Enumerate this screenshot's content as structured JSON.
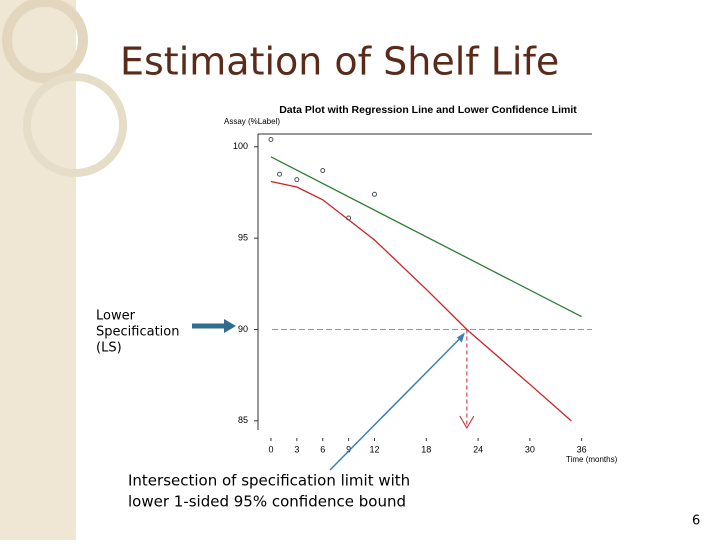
{
  "slide_title": "Estimation of Shelf Life",
  "left_note": [
    "Lower",
    "Specification",
    "(LS)"
  ],
  "bottom_note": [
    "Intersection of specification limit with",
    "lower 1-sided 95% confidence bound"
  ],
  "page_number": "6",
  "chart_data": {
    "type": "line",
    "title": "Data Plot with Regression Line and Lower Confidence Limit",
    "y_label": "Assay (%Label)",
    "x_label": "Time (months)",
    "xlim": [
      -1.5,
      37.2
    ],
    "ylim": [
      84.5,
      100.7
    ],
    "xticks": [
      0,
      3,
      6,
      9,
      12,
      18,
      24,
      30,
      36
    ],
    "yticks": [
      85,
      90,
      95,
      100
    ],
    "points": {
      "x": [
        0,
        1,
        3,
        6,
        9,
        12
      ],
      "values": [
        100.4,
        98.5,
        98.2,
        98.7,
        96.1,
        97.4
      ],
      "color": "#555555"
    },
    "series": [
      {
        "color": "#2e7d32",
        "x": [
          0,
          36
        ],
        "values": [
          99.45,
          90.7
        ]
      },
      {
        "color": "#cc2222",
        "x": [
          0,
          3,
          6,
          9,
          12,
          18,
          22.7,
          30,
          34.8
        ],
        "values": [
          98.1,
          97.8,
          97.1,
          96.0,
          94.9,
          92.2,
          90,
          87.0,
          85
        ]
      }
    ],
    "spec_limit": 90,
    "intersection_x": 22.7
  }
}
